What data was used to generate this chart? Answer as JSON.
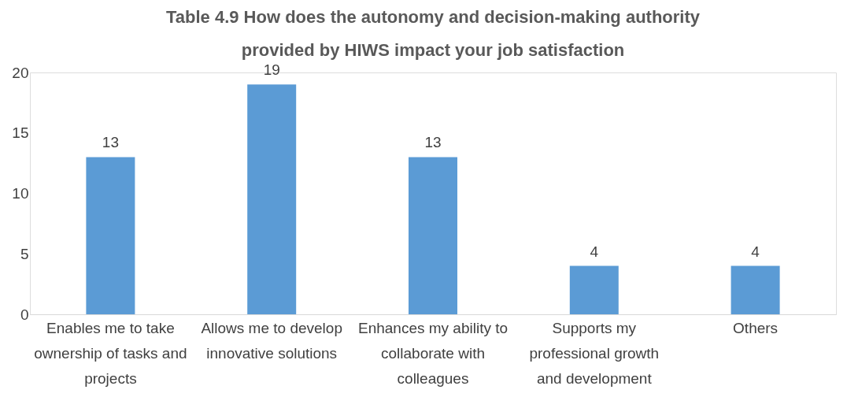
{
  "chart_data": {
    "type": "bar",
    "title": "Table 4.9 How does the autonomy and decision-making authority provided by HIWS impact your job satisfaction",
    "categories": [
      "Enables me to take ownership of tasks and projects",
      "Allows me to develop innovative solutions",
      "Enhances my ability to collaborate with colleagues",
      "Supports my professional growth and development",
      "Others"
    ],
    "values": [
      13,
      19,
      13,
      4,
      4
    ],
    "color": "#5b9bd5",
    "ylim": [
      0,
      20
    ],
    "yticks": [
      0,
      5,
      10,
      15,
      20
    ],
    "grid": false,
    "data_labels": true
  }
}
